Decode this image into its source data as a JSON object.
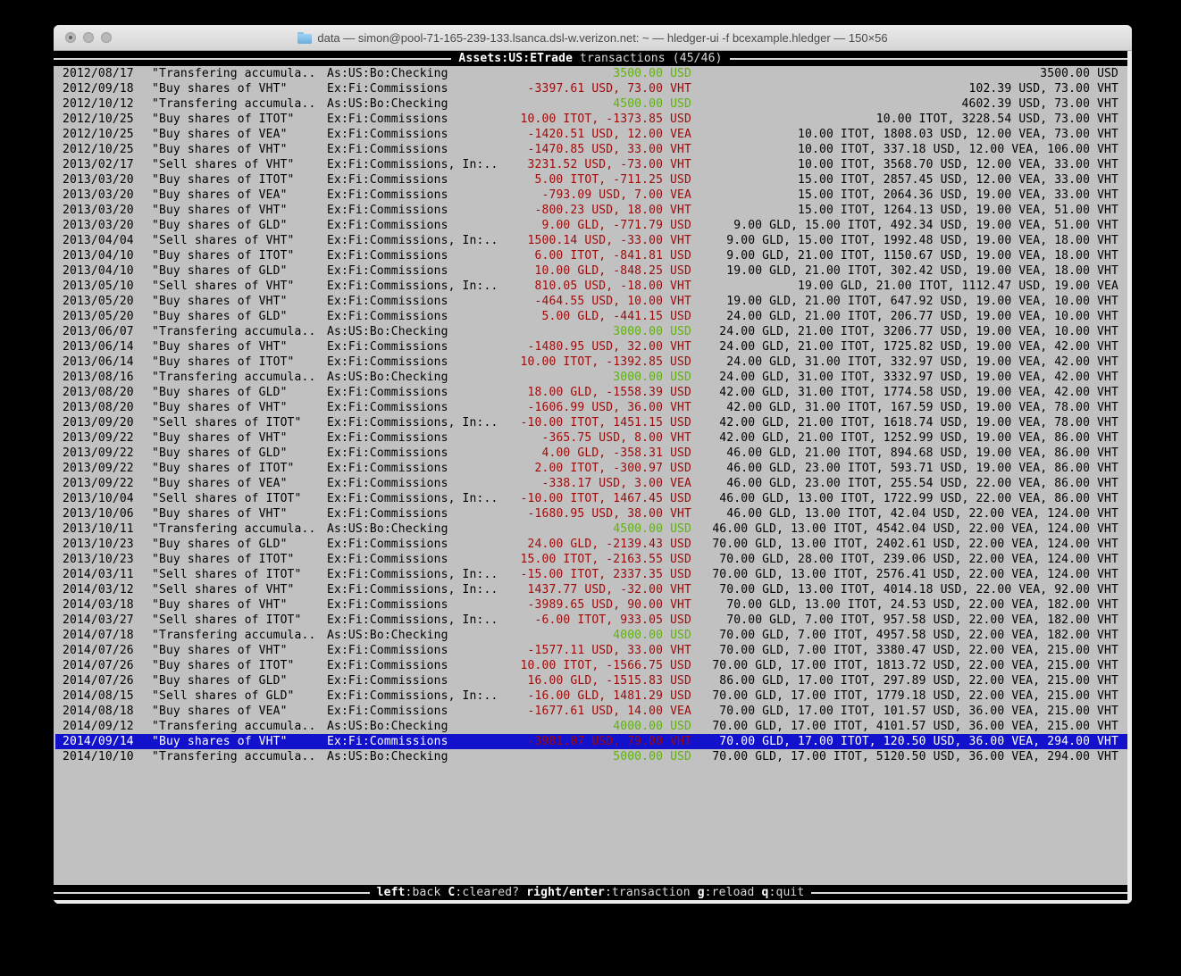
{
  "window": {
    "title": "data — simon@pool-71-165-239-133.lsanca.dsl-w.verizon.net: ~ — hledger-ui -f bcexample.hledger — 150×56"
  },
  "header": {
    "account": "Assets:US:ETrade",
    "rest": " transactions (45/46)"
  },
  "footer": {
    "hints": [
      {
        "key": "left",
        "desc": ":back"
      },
      {
        "key": "C",
        "desc": ":cleared?"
      },
      {
        "key": "right/enter",
        "desc": ":transaction"
      },
      {
        "key": "g",
        "desc": ":reload"
      },
      {
        "key": "q",
        "desc": ":quit"
      }
    ]
  },
  "colors": {
    "terminal_bg": "#c1c1c1",
    "bar_bg": "#000000",
    "amount_positive": "#5fb40a",
    "amount_negative": "#9d0a0a",
    "selection_bg": "#1212cd"
  },
  "transactions": [
    {
      "date": "2012/08/17",
      "description": "\"Transfering accumula..",
      "account": "As:US:Bo:Checking",
      "amount": "3500.00 USD",
      "amount_color": "green",
      "balance": "3500.00 USD",
      "selected": false
    },
    {
      "date": "2012/09/18",
      "description": "\"Buy shares of VHT\"",
      "account": "Ex:Fi:Commissions",
      "amount": "-3397.61 USD, 73.00 VHT",
      "amount_color": "red",
      "balance": "102.39 USD, 73.00 VHT",
      "selected": false
    },
    {
      "date": "2012/10/12",
      "description": "\"Transfering accumula..",
      "account": "As:US:Bo:Checking",
      "amount": "4500.00 USD",
      "amount_color": "green",
      "balance": "4602.39 USD, 73.00 VHT",
      "selected": false
    },
    {
      "date": "2012/10/25",
      "description": "\"Buy shares of ITOT\"",
      "account": "Ex:Fi:Commissions",
      "amount": "10.00 ITOT, -1373.85 USD",
      "amount_color": "red",
      "balance": "10.00 ITOT, 3228.54 USD, 73.00 VHT",
      "selected": false
    },
    {
      "date": "2012/10/25",
      "description": "\"Buy shares of VEA\"",
      "account": "Ex:Fi:Commissions",
      "amount": "-1420.51 USD, 12.00 VEA",
      "amount_color": "red",
      "balance": "10.00 ITOT, 1808.03 USD, 12.00 VEA, 73.00 VHT",
      "selected": false
    },
    {
      "date": "2012/10/25",
      "description": "\"Buy shares of VHT\"",
      "account": "Ex:Fi:Commissions",
      "amount": "-1470.85 USD, 33.00 VHT",
      "amount_color": "red",
      "balance": "10.00 ITOT, 337.18 USD, 12.00 VEA, 106.00 VHT",
      "selected": false
    },
    {
      "date": "2013/02/17",
      "description": "\"Sell shares of VHT\"",
      "account": "Ex:Fi:Commissions, In:..",
      "amount": "3231.52 USD, -73.00 VHT",
      "amount_color": "red",
      "balance": "10.00 ITOT, 3568.70 USD, 12.00 VEA, 33.00 VHT",
      "selected": false
    },
    {
      "date": "2013/03/20",
      "description": "\"Buy shares of ITOT\"",
      "account": "Ex:Fi:Commissions",
      "amount": "5.00 ITOT, -711.25 USD",
      "amount_color": "red",
      "balance": "15.00 ITOT, 2857.45 USD, 12.00 VEA, 33.00 VHT",
      "selected": false
    },
    {
      "date": "2013/03/20",
      "description": "\"Buy shares of VEA\"",
      "account": "Ex:Fi:Commissions",
      "amount": "-793.09 USD, 7.00 VEA",
      "amount_color": "red",
      "balance": "15.00 ITOT, 2064.36 USD, 19.00 VEA, 33.00 VHT",
      "selected": false
    },
    {
      "date": "2013/03/20",
      "description": "\"Buy shares of VHT\"",
      "account": "Ex:Fi:Commissions",
      "amount": "-800.23 USD, 18.00 VHT",
      "amount_color": "red",
      "balance": "15.00 ITOT, 1264.13 USD, 19.00 VEA, 51.00 VHT",
      "selected": false
    },
    {
      "date": "2013/03/20",
      "description": "\"Buy shares of GLD\"",
      "account": "Ex:Fi:Commissions",
      "amount": "9.00 GLD, -771.79 USD",
      "amount_color": "red",
      "balance": "9.00 GLD, 15.00 ITOT, 492.34 USD, 19.00 VEA, 51.00 VHT",
      "selected": false
    },
    {
      "date": "2013/04/04",
      "description": "\"Sell shares of VHT\"",
      "account": "Ex:Fi:Commissions, In:..",
      "amount": "1500.14 USD, -33.00 VHT",
      "amount_color": "red",
      "balance": "9.00 GLD, 15.00 ITOT, 1992.48 USD, 19.00 VEA, 18.00 VHT",
      "selected": false
    },
    {
      "date": "2013/04/10",
      "description": "\"Buy shares of ITOT\"",
      "account": "Ex:Fi:Commissions",
      "amount": "6.00 ITOT, -841.81 USD",
      "amount_color": "red",
      "balance": "9.00 GLD, 21.00 ITOT, 1150.67 USD, 19.00 VEA, 18.00 VHT",
      "selected": false
    },
    {
      "date": "2013/04/10",
      "description": "\"Buy shares of GLD\"",
      "account": "Ex:Fi:Commissions",
      "amount": "10.00 GLD, -848.25 USD",
      "amount_color": "red",
      "balance": "19.00 GLD, 21.00 ITOT, 302.42 USD, 19.00 VEA, 18.00 VHT",
      "selected": false
    },
    {
      "date": "2013/05/10",
      "description": "\"Sell shares of VHT\"",
      "account": "Ex:Fi:Commissions, In:..",
      "amount": "810.05 USD, -18.00 VHT",
      "amount_color": "red",
      "balance": "19.00 GLD, 21.00 ITOT, 1112.47 USD, 19.00 VEA",
      "selected": false
    },
    {
      "date": "2013/05/20",
      "description": "\"Buy shares of VHT\"",
      "account": "Ex:Fi:Commissions",
      "amount": "-464.55 USD, 10.00 VHT",
      "amount_color": "red",
      "balance": "19.00 GLD, 21.00 ITOT, 647.92 USD, 19.00 VEA, 10.00 VHT",
      "selected": false
    },
    {
      "date": "2013/05/20",
      "description": "\"Buy shares of GLD\"",
      "account": "Ex:Fi:Commissions",
      "amount": "5.00 GLD, -441.15 USD",
      "amount_color": "red",
      "balance": "24.00 GLD, 21.00 ITOT, 206.77 USD, 19.00 VEA, 10.00 VHT",
      "selected": false
    },
    {
      "date": "2013/06/07",
      "description": "\"Transfering accumula..",
      "account": "As:US:Bo:Checking",
      "amount": "3000.00 USD",
      "amount_color": "green",
      "balance": "24.00 GLD, 21.00 ITOT, 3206.77 USD, 19.00 VEA, 10.00 VHT",
      "selected": false
    },
    {
      "date": "2013/06/14",
      "description": "\"Buy shares of VHT\"",
      "account": "Ex:Fi:Commissions",
      "amount": "-1480.95 USD, 32.00 VHT",
      "amount_color": "red",
      "balance": "24.00 GLD, 21.00 ITOT, 1725.82 USD, 19.00 VEA, 42.00 VHT",
      "selected": false
    },
    {
      "date": "2013/06/14",
      "description": "\"Buy shares of ITOT\"",
      "account": "Ex:Fi:Commissions",
      "amount": "10.00 ITOT, -1392.85 USD",
      "amount_color": "red",
      "balance": "24.00 GLD, 31.00 ITOT, 332.97 USD, 19.00 VEA, 42.00 VHT",
      "selected": false
    },
    {
      "date": "2013/08/16",
      "description": "\"Transfering accumula..",
      "account": "As:US:Bo:Checking",
      "amount": "3000.00 USD",
      "amount_color": "green",
      "balance": "24.00 GLD, 31.00 ITOT, 3332.97 USD, 19.00 VEA, 42.00 VHT",
      "selected": false
    },
    {
      "date": "2013/08/20",
      "description": "\"Buy shares of GLD\"",
      "account": "Ex:Fi:Commissions",
      "amount": "18.00 GLD, -1558.39 USD",
      "amount_color": "red",
      "balance": "42.00 GLD, 31.00 ITOT, 1774.58 USD, 19.00 VEA, 42.00 VHT",
      "selected": false
    },
    {
      "date": "2013/08/20",
      "description": "\"Buy shares of VHT\"",
      "account": "Ex:Fi:Commissions",
      "amount": "-1606.99 USD, 36.00 VHT",
      "amount_color": "red",
      "balance": "42.00 GLD, 31.00 ITOT, 167.59 USD, 19.00 VEA, 78.00 VHT",
      "selected": false
    },
    {
      "date": "2013/09/20",
      "description": "\"Sell shares of ITOT\"",
      "account": "Ex:Fi:Commissions, In:..",
      "amount": "-10.00 ITOT, 1451.15 USD",
      "amount_color": "red",
      "balance": "42.00 GLD, 21.00 ITOT, 1618.74 USD, 19.00 VEA, 78.00 VHT",
      "selected": false
    },
    {
      "date": "2013/09/22",
      "description": "\"Buy shares of VHT\"",
      "account": "Ex:Fi:Commissions",
      "amount": "-365.75 USD, 8.00 VHT",
      "amount_color": "red",
      "balance": "42.00 GLD, 21.00 ITOT, 1252.99 USD, 19.00 VEA, 86.00 VHT",
      "selected": false
    },
    {
      "date": "2013/09/22",
      "description": "\"Buy shares of GLD\"",
      "account": "Ex:Fi:Commissions",
      "amount": "4.00 GLD, -358.31 USD",
      "amount_color": "red",
      "balance": "46.00 GLD, 21.00 ITOT, 894.68 USD, 19.00 VEA, 86.00 VHT",
      "selected": false
    },
    {
      "date": "2013/09/22",
      "description": "\"Buy shares of ITOT\"",
      "account": "Ex:Fi:Commissions",
      "amount": "2.00 ITOT, -300.97 USD",
      "amount_color": "red",
      "balance": "46.00 GLD, 23.00 ITOT, 593.71 USD, 19.00 VEA, 86.00 VHT",
      "selected": false
    },
    {
      "date": "2013/09/22",
      "description": "\"Buy shares of VEA\"",
      "account": "Ex:Fi:Commissions",
      "amount": "-338.17 USD, 3.00 VEA",
      "amount_color": "red",
      "balance": "46.00 GLD, 23.00 ITOT, 255.54 USD, 22.00 VEA, 86.00 VHT",
      "selected": false
    },
    {
      "date": "2013/10/04",
      "description": "\"Sell shares of ITOT\"",
      "account": "Ex:Fi:Commissions, In:..",
      "amount": "-10.00 ITOT, 1467.45 USD",
      "amount_color": "red",
      "balance": "46.00 GLD, 13.00 ITOT, 1722.99 USD, 22.00 VEA, 86.00 VHT",
      "selected": false
    },
    {
      "date": "2013/10/06",
      "description": "\"Buy shares of VHT\"",
      "account": "Ex:Fi:Commissions",
      "amount": "-1680.95 USD, 38.00 VHT",
      "amount_color": "red",
      "balance": "46.00 GLD, 13.00 ITOT, 42.04 USD, 22.00 VEA, 124.00 VHT",
      "selected": false
    },
    {
      "date": "2013/10/11",
      "description": "\"Transfering accumula..",
      "account": "As:US:Bo:Checking",
      "amount": "4500.00 USD",
      "amount_color": "green",
      "balance": "46.00 GLD, 13.00 ITOT, 4542.04 USD, 22.00 VEA, 124.00 VHT",
      "selected": false
    },
    {
      "date": "2013/10/23",
      "description": "\"Buy shares of GLD\"",
      "account": "Ex:Fi:Commissions",
      "amount": "24.00 GLD, -2139.43 USD",
      "amount_color": "red",
      "balance": "70.00 GLD, 13.00 ITOT, 2402.61 USD, 22.00 VEA, 124.00 VHT",
      "selected": false
    },
    {
      "date": "2013/10/23",
      "description": "\"Buy shares of ITOT\"",
      "account": "Ex:Fi:Commissions",
      "amount": "15.00 ITOT, -2163.55 USD",
      "amount_color": "red",
      "balance": "70.00 GLD, 28.00 ITOT, 239.06 USD, 22.00 VEA, 124.00 VHT",
      "selected": false
    },
    {
      "date": "2014/03/11",
      "description": "\"Sell shares of ITOT\"",
      "account": "Ex:Fi:Commissions, In:..",
      "amount": "-15.00 ITOT, 2337.35 USD",
      "amount_color": "red",
      "balance": "70.00 GLD, 13.00 ITOT, 2576.41 USD, 22.00 VEA, 124.00 VHT",
      "selected": false
    },
    {
      "date": "2014/03/12",
      "description": "\"Sell shares of VHT\"",
      "account": "Ex:Fi:Commissions, In:..",
      "amount": "1437.77 USD, -32.00 VHT",
      "amount_color": "red",
      "balance": "70.00 GLD, 13.00 ITOT, 4014.18 USD, 22.00 VEA, 92.00 VHT",
      "selected": false
    },
    {
      "date": "2014/03/18",
      "description": "\"Buy shares of VHT\"",
      "account": "Ex:Fi:Commissions",
      "amount": "-3989.65 USD, 90.00 VHT",
      "amount_color": "red",
      "balance": "70.00 GLD, 13.00 ITOT, 24.53 USD, 22.00 VEA, 182.00 VHT",
      "selected": false
    },
    {
      "date": "2014/03/27",
      "description": "\"Sell shares of ITOT\"",
      "account": "Ex:Fi:Commissions, In:..",
      "amount": "-6.00 ITOT, 933.05 USD",
      "amount_color": "red",
      "balance": "70.00 GLD, 7.00 ITOT, 957.58 USD, 22.00 VEA, 182.00 VHT",
      "selected": false
    },
    {
      "date": "2014/07/18",
      "description": "\"Transfering accumula..",
      "account": "As:US:Bo:Checking",
      "amount": "4000.00 USD",
      "amount_color": "green",
      "balance": "70.00 GLD, 7.00 ITOT, 4957.58 USD, 22.00 VEA, 182.00 VHT",
      "selected": false
    },
    {
      "date": "2014/07/26",
      "description": "\"Buy shares of VHT\"",
      "account": "Ex:Fi:Commissions",
      "amount": "-1577.11 USD, 33.00 VHT",
      "amount_color": "red",
      "balance": "70.00 GLD, 7.00 ITOT, 3380.47 USD, 22.00 VEA, 215.00 VHT",
      "selected": false
    },
    {
      "date": "2014/07/26",
      "description": "\"Buy shares of ITOT\"",
      "account": "Ex:Fi:Commissions",
      "amount": "10.00 ITOT, -1566.75 USD",
      "amount_color": "red",
      "balance": "70.00 GLD, 17.00 ITOT, 1813.72 USD, 22.00 VEA, 215.00 VHT",
      "selected": false
    },
    {
      "date": "2014/07/26",
      "description": "\"Buy shares of GLD\"",
      "account": "Ex:Fi:Commissions",
      "amount": "16.00 GLD, -1515.83 USD",
      "amount_color": "red",
      "balance": "86.00 GLD, 17.00 ITOT, 297.89 USD, 22.00 VEA, 215.00 VHT",
      "selected": false
    },
    {
      "date": "2014/08/15",
      "description": "\"Sell shares of GLD\"",
      "account": "Ex:Fi:Commissions, In:..",
      "amount": "-16.00 GLD, 1481.29 USD",
      "amount_color": "red",
      "balance": "70.00 GLD, 17.00 ITOT, 1779.18 USD, 22.00 VEA, 215.00 VHT",
      "selected": false
    },
    {
      "date": "2014/08/18",
      "description": "\"Buy shares of VEA\"",
      "account": "Ex:Fi:Commissions",
      "amount": "-1677.61 USD, 14.00 VEA",
      "amount_color": "red",
      "balance": "70.00 GLD, 17.00 ITOT, 101.57 USD, 36.00 VEA, 215.00 VHT",
      "selected": false
    },
    {
      "date": "2014/09/12",
      "description": "\"Transfering accumula..",
      "account": "As:US:Bo:Checking",
      "amount": "4000.00 USD",
      "amount_color": "green",
      "balance": "70.00 GLD, 17.00 ITOT, 4101.57 USD, 36.00 VEA, 215.00 VHT",
      "selected": false
    },
    {
      "date": "2014/09/14",
      "description": "\"Buy shares of VHT\"",
      "account": "Ex:Fi:Commissions",
      "amount": "-3981.07 USD, 79.00 VHT",
      "amount_color": "red",
      "balance": "70.00 GLD, 17.00 ITOT, 120.50 USD, 36.00 VEA, 294.00 VHT",
      "selected": true
    },
    {
      "date": "2014/10/10",
      "description": "\"Transfering accumula..",
      "account": "As:US:Bo:Checking",
      "amount": "5000.00 USD",
      "amount_color": "green",
      "balance": "70.00 GLD, 17.00 ITOT, 5120.50 USD, 36.00 VEA, 294.00 VHT",
      "selected": false
    }
  ]
}
